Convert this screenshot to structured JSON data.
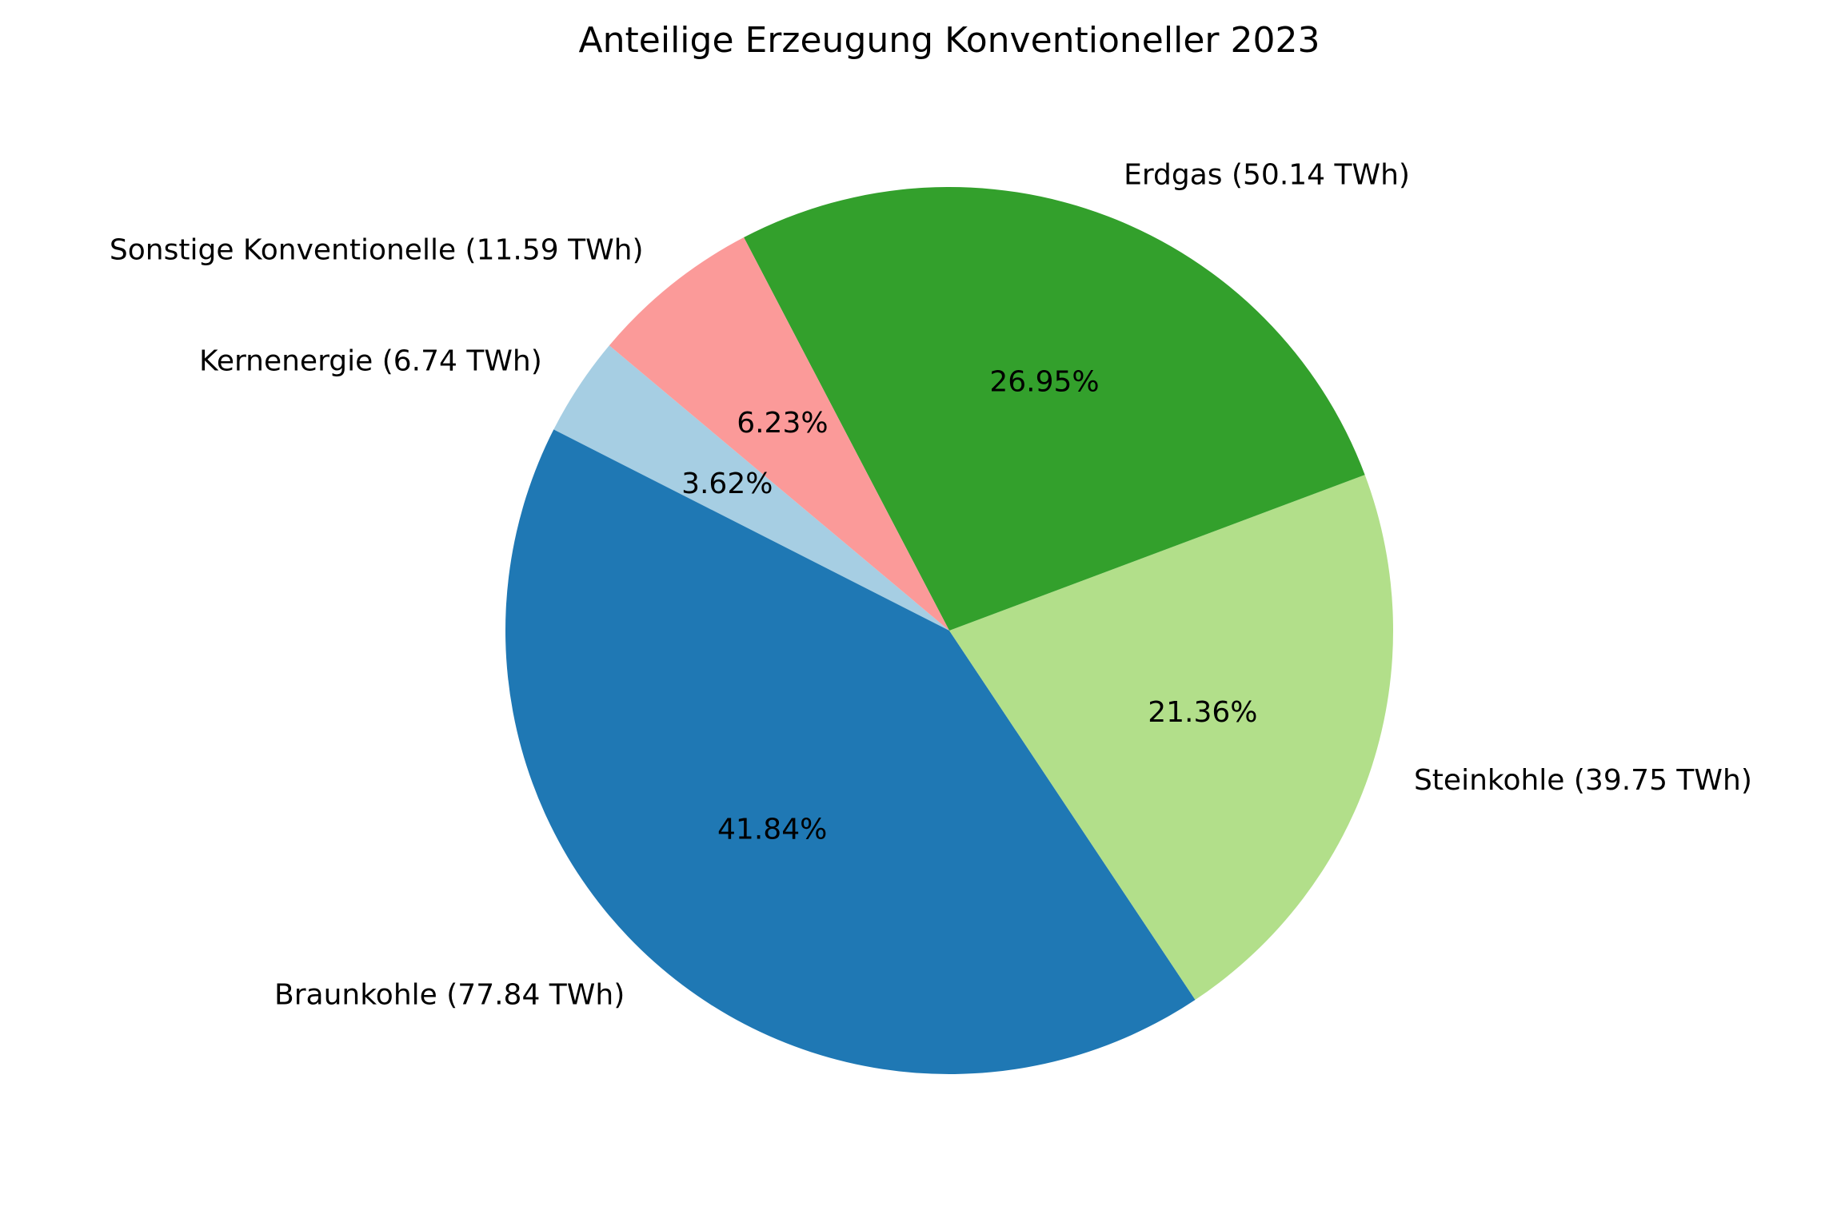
{
  "chart_data": {
    "type": "pie",
    "title": "Anteilige Erzeugung Konventioneller 2023",
    "slices": [
      {
        "label": "Kernenergie (6.74 TWh)",
        "value": 6.74,
        "percent_label": "3.62%",
        "color": "#a6cee3"
      },
      {
        "label": "Braunkohle (77.84 TWh)",
        "value": 77.84,
        "percent_label": "41.84%",
        "color": "#1f78b4"
      },
      {
        "label": "Steinkohle (39.75 TWh)",
        "value": 39.75,
        "percent_label": "21.36%",
        "color": "#b2df8a"
      },
      {
        "label": "Erdgas (50.14 TWh)",
        "value": 50.14,
        "percent_label": "26.95%",
        "color": "#33a02c"
      },
      {
        "label": "Sonstige Konventionelle (11.59 TWh)",
        "value": 11.59,
        "percent_label": "6.23%",
        "color": "#fb9a99"
      }
    ],
    "start_angle_deg": 140,
    "direction": "counterclockwise",
    "legend": "none"
  }
}
